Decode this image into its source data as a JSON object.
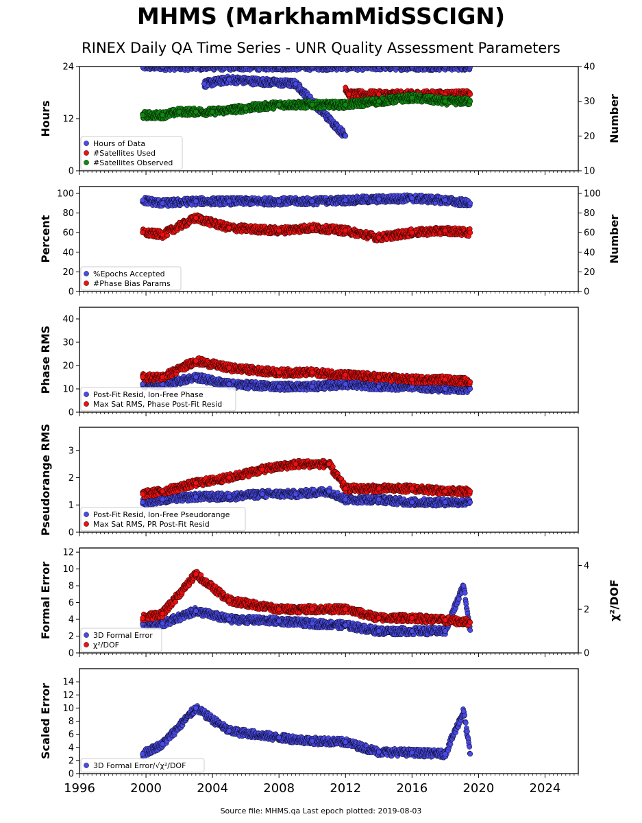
{
  "title": "MHMS (MarkhamMidSSCIGN)",
  "subtitle": "RINEX Daily QA Time Series - UNR Quality Assessment Parameters",
  "footer": "Source file: MHMS.qa Last epoch plotted: 2019-08-03",
  "colors": {
    "blue": "#4a4ae6",
    "red": "#ee1111",
    "green": "#118811"
  },
  "chart_data": [
    {
      "type": "scatter",
      "ylabel": "Hours",
      "ylim": [
        0,
        24
      ],
      "yticks": [
        0,
        12,
        24
      ],
      "y2label": "Number",
      "y2lim": [
        10,
        40
      ],
      "y2ticks": [
        10,
        20,
        30,
        40
      ],
      "xlim": [
        1996,
        2026
      ],
      "xticks": [
        1996,
        2000,
        2004,
        2008,
        2012,
        2016,
        2020,
        2024
      ],
      "series": [
        {
          "name": "Hours of Data",
          "color": "blue",
          "axis": "left",
          "x": [
            1999.8,
            2001.0,
            2003.0,
            2006.0,
            2008.0,
            2010.0,
            2012.0,
            2014.0,
            2016.0,
            2018.0,
            2019.5,
            2003.5,
            2005.0,
            2009.0,
            2012.0
          ],
          "y": [
            24,
            24,
            24,
            24,
            24,
            24,
            24,
            24,
            24,
            24,
            24,
            20,
            21,
            20,
            8
          ]
        },
        {
          "name": "#Satellites Used",
          "color": "red",
          "axis": "right",
          "x": [
            2012.0,
            2012.2,
            2014.0,
            2016.0,
            2018.0,
            2019.5
          ],
          "y": [
            34,
            32,
            32,
            32,
            32,
            32
          ]
        },
        {
          "name": "#Satellites Observed",
          "color": "green",
          "axis": "right",
          "x": [
            1999.8,
            2001.0,
            2002.0,
            2003.0,
            2004.0,
            2006.0,
            2008.0,
            2010.0,
            2012.0,
            2014.0,
            2016.0,
            2018.0,
            2019.5
          ],
          "y": [
            26,
            26,
            27,
            27,
            27,
            28,
            29,
            29,
            29,
            30,
            31,
            30,
            30
          ]
        }
      ]
    },
    {
      "type": "scatter",
      "ylabel": "Percent",
      "ylim": [
        0,
        107
      ],
      "yticks": [
        0,
        20,
        40,
        60,
        80,
        100
      ],
      "y2label": "Number",
      "y2lim": [
        0,
        107
      ],
      "y2ticks": [
        0,
        20,
        40,
        60,
        80,
        100
      ],
      "xlim": [
        1996,
        2026
      ],
      "xticks": [
        1996,
        2000,
        2004,
        2008,
        2012,
        2016,
        2020,
        2024
      ],
      "series": [
        {
          "name": "%Epochs Accepted",
          "color": "blue",
          "axis": "left",
          "x": [
            1999.8,
            2001.0,
            2003.0,
            2005.0,
            2008.0,
            2010.0,
            2012.0,
            2014.0,
            2016.0,
            2018.0,
            2019.5
          ],
          "y": [
            93,
            90,
            92,
            92,
            92,
            92,
            93,
            94,
            95,
            93,
            90
          ]
        },
        {
          "name": "#Phase Bias Params",
          "color": "red",
          "axis": "right",
          "x": [
            1999.8,
            2001.0,
            2003.0,
            2005.0,
            2008.0,
            2010.0,
            2012.0,
            2014.0,
            2016.0,
            2018.0,
            2019.5
          ],
          "y": [
            60,
            58,
            75,
            65,
            62,
            65,
            62,
            55,
            60,
            62,
            60
          ]
        }
      ]
    },
    {
      "type": "scatter",
      "ylabel": "Phase RMS",
      "ylim": [
        0,
        45
      ],
      "yticks": [
        0,
        10,
        20,
        30,
        40
      ],
      "xlim": [
        1996,
        2026
      ],
      "xticks": [
        1996,
        2000,
        2004,
        2008,
        2012,
        2016,
        2020,
        2024
      ],
      "series": [
        {
          "name": "Post-Fit Resid, Ion-Free Phase",
          "color": "blue",
          "axis": "left",
          "x": [
            1999.8,
            2001.0,
            2003.0,
            2005.0,
            2008.0,
            2010.0,
            2012.0,
            2014.0,
            2016.0,
            2018.0,
            2019.5
          ],
          "y": [
            12,
            12,
            15,
            12,
            11,
            11,
            12,
            11,
            11,
            10,
            10
          ]
        },
        {
          "name": "Max Sat RMS, Phase Post-Fit Resid",
          "color": "red",
          "axis": "left",
          "x": [
            1999.8,
            2001.0,
            2003.0,
            2005.0,
            2008.0,
            2010.0,
            2012.0,
            2014.0,
            2016.0,
            2018.0,
            2019.5
          ],
          "y": [
            15,
            15,
            22,
            19,
            17,
            17,
            16,
            15,
            14,
            14,
            13
          ]
        }
      ]
    },
    {
      "type": "scatter",
      "ylabel": "Pseudorange RMS",
      "ylim": [
        0,
        3.85
      ],
      "yticks": [
        0,
        1,
        2,
        3
      ],
      "xlim": [
        1996,
        2026
      ],
      "xticks": [
        1996,
        2000,
        2004,
        2008,
        2012,
        2016,
        2020,
        2024
      ],
      "series": [
        {
          "name": "Post-Fit Resid, Ion-Free Pseudorange",
          "color": "blue",
          "axis": "left",
          "x": [
            1999.8,
            2001.0,
            2003.0,
            2005.0,
            2007.0,
            2009.0,
            2011.0,
            2012.0,
            2014.0,
            2016.0,
            2018.0,
            2019.5
          ],
          "y": [
            1.1,
            1.2,
            1.3,
            1.3,
            1.4,
            1.4,
            1.5,
            1.2,
            1.2,
            1.1,
            1.1,
            1.1
          ]
        },
        {
          "name": "Max Sat RMS, PR Post-Fit Resid",
          "color": "red",
          "axis": "left",
          "x": [
            1999.8,
            2001.0,
            2003.0,
            2005.0,
            2007.0,
            2009.0,
            2011.0,
            2012.0,
            2014.0,
            2016.0,
            2018.0,
            2019.5
          ],
          "y": [
            1.4,
            1.5,
            1.8,
            2.0,
            2.3,
            2.5,
            2.5,
            1.6,
            1.6,
            1.6,
            1.5,
            1.5
          ]
        }
      ]
    },
    {
      "type": "scatter",
      "ylabel": "Formal Error",
      "ylim": [
        0,
        12.5
      ],
      "yticks": [
        0,
        2,
        4,
        6,
        8,
        10,
        12
      ],
      "y2label": "χ²/DOF",
      "y2lim": [
        0,
        4.8
      ],
      "y2ticks": [
        0,
        2,
        4
      ],
      "xlim": [
        1996,
        2026
      ],
      "xticks": [
        1996,
        2000,
        2004,
        2008,
        2012,
        2016,
        2020,
        2024
      ],
      "series": [
        {
          "name": "3D Formal Error",
          "color": "blue",
          "axis": "left",
          "x": [
            1999.8,
            2001.0,
            2003.0,
            2005.0,
            2008.0,
            2010.0,
            2012.0,
            2014.0,
            2016.0,
            2018.0,
            2019.1,
            2019.5
          ],
          "y": [
            3.5,
            3.5,
            5.0,
            4.0,
            3.8,
            3.5,
            3.3,
            2.6,
            2.6,
            2.6,
            8.0,
            2.7
          ]
        },
        {
          "name": "χ²/DOF",
          "color": "red",
          "axis": "right",
          "x": [
            1999.8,
            2001.0,
            2003.0,
            2005.0,
            2008.0,
            2010.0,
            2012.0,
            2014.0,
            2016.0,
            2018.0,
            2019.5
          ],
          "y": [
            1.6,
            1.8,
            3.6,
            2.4,
            2.0,
            2.0,
            2.0,
            1.6,
            1.6,
            1.5,
            1.4
          ]
        }
      ]
    },
    {
      "type": "scatter",
      "ylabel": "Scaled Error",
      "ylim": [
        0,
        16
      ],
      "yticks": [
        0,
        2,
        4,
        6,
        8,
        10,
        12,
        14
      ],
      "xlim": [
        1996,
        2026
      ],
      "xticks": [
        1996,
        2000,
        2004,
        2008,
        2012,
        2016,
        2020,
        2024
      ],
      "series": [
        {
          "name": "3D Formal Error/√χ²/DOF",
          "color": "blue",
          "axis": "left",
          "x": [
            1999.8,
            2001.0,
            2003.0,
            2005.0,
            2008.0,
            2010.0,
            2012.0,
            2014.0,
            2016.0,
            2018.0,
            2019.1,
            2019.5
          ],
          "y": [
            3.0,
            4.5,
            10.0,
            6.5,
            5.5,
            5.0,
            4.8,
            3.3,
            3.2,
            3.0,
            9.5,
            3.0
          ]
        }
      ]
    }
  ]
}
